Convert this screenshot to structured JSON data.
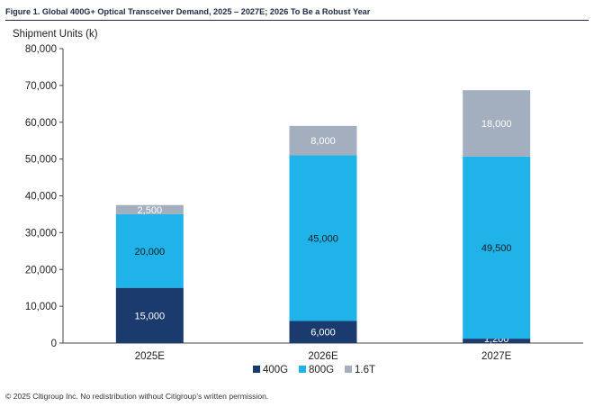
{
  "header": {
    "title": "Figure 1. Global 400G+ Optical Transceiver Demand, 2025 – 2027E; 2026 To Be a Robust Year"
  },
  "footer": {
    "copyright": "© 2025 Citigroup Inc. No redistribution without Citigroup’s written permission."
  },
  "chart_data": {
    "type": "bar",
    "stacked": true,
    "title": "Figure 1. Global 400G+ Optical Transceiver Demand, 2025 – 2027E; 2026 To Be a Robust Year",
    "xlabel": "",
    "ylabel": "Shipment Units (k)",
    "ylim": [
      0,
      80000
    ],
    "yticks": [
      0,
      10000,
      20000,
      30000,
      40000,
      50000,
      60000,
      70000,
      80000
    ],
    "ytick_labels": [
      "0",
      "10,000",
      "20,000",
      "30,000",
      "40,000",
      "50,000",
      "60,000",
      "70,000",
      "80,000"
    ],
    "categories": [
      "2025E",
      "2026E",
      "2027E"
    ],
    "series": [
      {
        "name": "400G",
        "color": "#1b3a6e",
        "values": [
          15000,
          6000,
          1200
        ],
        "labels": [
          "15,000",
          "6,000",
          "1,200"
        ],
        "label_color": "#ffffff"
      },
      {
        "name": "800G",
        "color": "#1fb3ea",
        "values": [
          20000,
          45000,
          49500
        ],
        "labels": [
          "20,000",
          "45,000",
          "49,500"
        ],
        "label_color": "#1a1a1a"
      },
      {
        "name": "1.6T",
        "color": "#a3aebf",
        "values": [
          2500,
          8000,
          18000
        ],
        "labels": [
          "2,500",
          "8,000",
          "18,000"
        ],
        "label_color": "#ffffff"
      }
    ],
    "legend_position": "bottom-center",
    "grid": false
  }
}
